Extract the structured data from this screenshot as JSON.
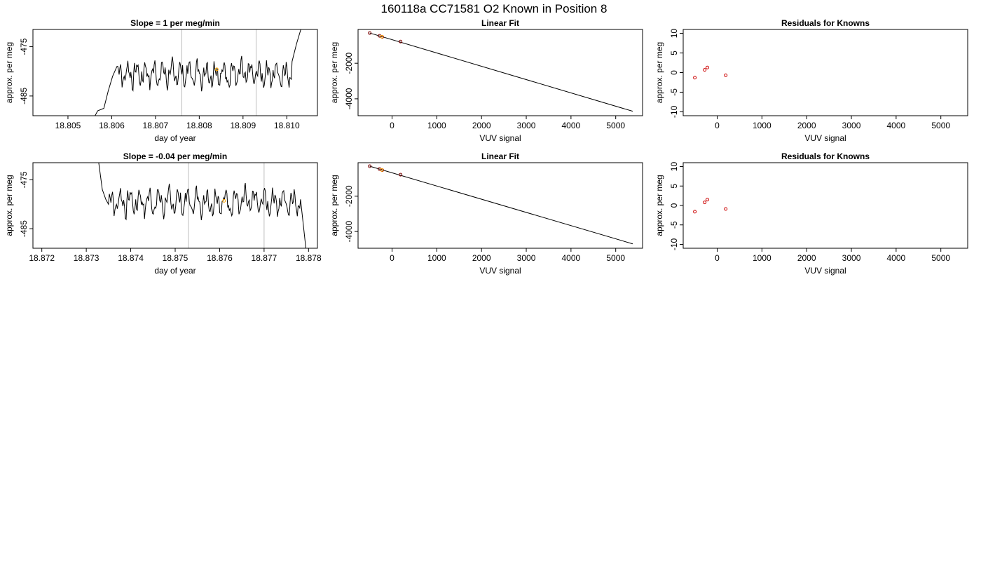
{
  "figure": {
    "title": "160118a      CC71581   O2 Known in Position  8"
  },
  "colors": {
    "line": "#000000",
    "highlight": "#FFA500",
    "residual": "#CC0000",
    "vline": "#BEBEBE"
  },
  "chart_data": [
    {
      "id": "ts-top",
      "type": "line",
      "title": "Slope =  1  per meg/min",
      "xlabel": "day of year",
      "ylabel": "approx. per meg",
      "xlim": [
        18.8042,
        18.8107
      ],
      "ylim": [
        -489,
        -471.5
      ],
      "xticks": [
        "18.805",
        "18.806",
        "18.807",
        "18.808",
        "18.809",
        "18.810"
      ],
      "xtick_values": [
        18.805,
        18.806,
        18.807,
        18.808,
        18.809,
        18.81
      ],
      "yticks": [
        "-475",
        "-485"
      ],
      "ytick_values": [
        -475,
        -485
      ],
      "vlines": [
        18.8076,
        18.8093
      ],
      "series_start": 18.80562,
      "series_end": 18.81032,
      "series_baseline": -480.5,
      "series_amplitude": 1.7,
      "entry": [
        [
          18.80562,
          -489.0
        ],
        [
          18.80568,
          -488.0
        ],
        [
          18.80582,
          -487.5
        ],
        [
          18.80592,
          -484.0
        ],
        [
          18.80602,
          -481.0
        ],
        [
          18.80612,
          -479.0
        ]
      ],
      "exit": [
        [
          18.81012,
          -478.0
        ],
        [
          18.81022,
          -474.5
        ],
        [
          18.81032,
          -471.5
        ]
      ],
      "highlight_point": {
        "x": 18.8084,
        "y": -479.6
      }
    },
    {
      "id": "fit-top",
      "type": "line",
      "title": "Linear Fit",
      "xlabel": "VUV signal",
      "ylabel": "approx. per meg",
      "xlim": [
        -760,
        5600
      ],
      "ylim": [
        -4950,
        -100
      ],
      "xticks": [
        "0",
        "1000",
        "2000",
        "3000",
        "4000",
        "5000"
      ],
      "xtick_values": [
        0,
        1000,
        2000,
        3000,
        4000,
        5000
      ],
      "yticks": [
        "-2000",
        "-4000"
      ],
      "ytick_values": [
        -2000,
        -4000
      ],
      "fit_line": [
        [
          -500,
          -300
        ],
        [
          5380,
          -4700
        ]
      ],
      "points": [
        {
          "x": -500,
          "y": -300
        },
        {
          "x": -280,
          "y": -460
        },
        {
          "x": -220,
          "y": -520
        },
        {
          "x": 190,
          "y": -780
        }
      ],
      "highlight_point": {
        "x": -230,
        "y": -510
      }
    },
    {
      "id": "res-top",
      "type": "scatter",
      "title": "Residuals for Knowns",
      "xlabel": "VUV signal",
      "ylabel": "approx. per meg",
      "xlim": [
        -760,
        5600
      ],
      "ylim": [
        -11,
        11
      ],
      "xticks": [
        "0",
        "1000",
        "2000",
        "3000",
        "4000",
        "5000"
      ],
      "xtick_values": [
        0,
        1000,
        2000,
        3000,
        4000,
        5000
      ],
      "yticks": [
        "-10",
        "-5",
        "0",
        "5",
        "10"
      ],
      "ytick_values": [
        -10,
        -5,
        0,
        5,
        10
      ],
      "points": [
        {
          "x": -500,
          "y": -1.3
        },
        {
          "x": -280,
          "y": 0.7
        },
        {
          "x": -220,
          "y": 1.3
        },
        {
          "x": 190,
          "y": -0.7
        }
      ]
    },
    {
      "id": "ts-bottom",
      "type": "line",
      "title": "Slope =  -0.04  per meg/min",
      "xlabel": "day of year",
      "ylabel": "approx. per meg",
      "xlim": [
        18.8718,
        18.8782
      ],
      "ylim": [
        -489,
        -471.5
      ],
      "xticks": [
        "18.872",
        "18.873",
        "18.874",
        "18.875",
        "18.876",
        "18.877",
        "18.878"
      ],
      "xtick_values": [
        18.872,
        18.873,
        18.874,
        18.875,
        18.876,
        18.877,
        18.878
      ],
      "yticks": [
        "-475",
        "-485"
      ],
      "ytick_values": [
        -475,
        -485
      ],
      "vlines": [
        18.8753,
        18.877
      ],
      "series_start": 18.87328,
      "series_end": 18.87794,
      "series_baseline": -479.5,
      "series_amplitude": 1.8,
      "entry": [
        [
          18.87328,
          -471.5
        ],
        [
          18.87336,
          -477.0
        ],
        [
          18.87344,
          -479.0
        ],
        [
          18.8735,
          -480.0
        ]
      ],
      "exit": [
        [
          18.87782,
          -479.0
        ],
        [
          18.87788,
          -484.0
        ],
        [
          18.87794,
          -489.0
        ]
      ],
      "highlight_point": {
        "x": 18.8761,
        "y": -479.3
      }
    },
    {
      "id": "fit-bottom",
      "type": "line",
      "title": "Linear Fit",
      "xlabel": "VUV signal",
      "ylabel": "approx. per meg",
      "xlim": [
        -760,
        5600
      ],
      "ylim": [
        -4950,
        -100
      ],
      "xticks": [
        "0",
        "1000",
        "2000",
        "3000",
        "4000",
        "5000"
      ],
      "xtick_values": [
        0,
        1000,
        2000,
        3000,
        4000,
        5000
      ],
      "yticks": [
        "-2000",
        "-4000"
      ],
      "ytick_values": [
        -2000,
        -4000
      ],
      "fit_line": [
        [
          -500,
          -300
        ],
        [
          5380,
          -4700
        ]
      ],
      "points": [
        {
          "x": -500,
          "y": -300
        },
        {
          "x": -280,
          "y": -460
        },
        {
          "x": -220,
          "y": -520
        },
        {
          "x": 190,
          "y": -780
        }
      ],
      "highlight_point": {
        "x": -230,
        "y": -510
      }
    },
    {
      "id": "res-bottom",
      "type": "scatter",
      "title": "Residuals for Knowns",
      "xlabel": "VUV signal",
      "ylabel": "approx. per meg",
      "xlim": [
        -760,
        5600
      ],
      "ylim": [
        -11,
        11
      ],
      "xticks": [
        "0",
        "1000",
        "2000",
        "3000",
        "4000",
        "5000"
      ],
      "xtick_values": [
        0,
        1000,
        2000,
        3000,
        4000,
        5000
      ],
      "yticks": [
        "-10",
        "-5",
        "0",
        "5",
        "10"
      ],
      "ytick_values": [
        -10,
        -5,
        0,
        5,
        10
      ],
      "points": [
        {
          "x": -500,
          "y": -1.6
        },
        {
          "x": -280,
          "y": 0.8
        },
        {
          "x": -220,
          "y": 1.5
        },
        {
          "x": 190,
          "y": -0.9
        }
      ]
    }
  ]
}
